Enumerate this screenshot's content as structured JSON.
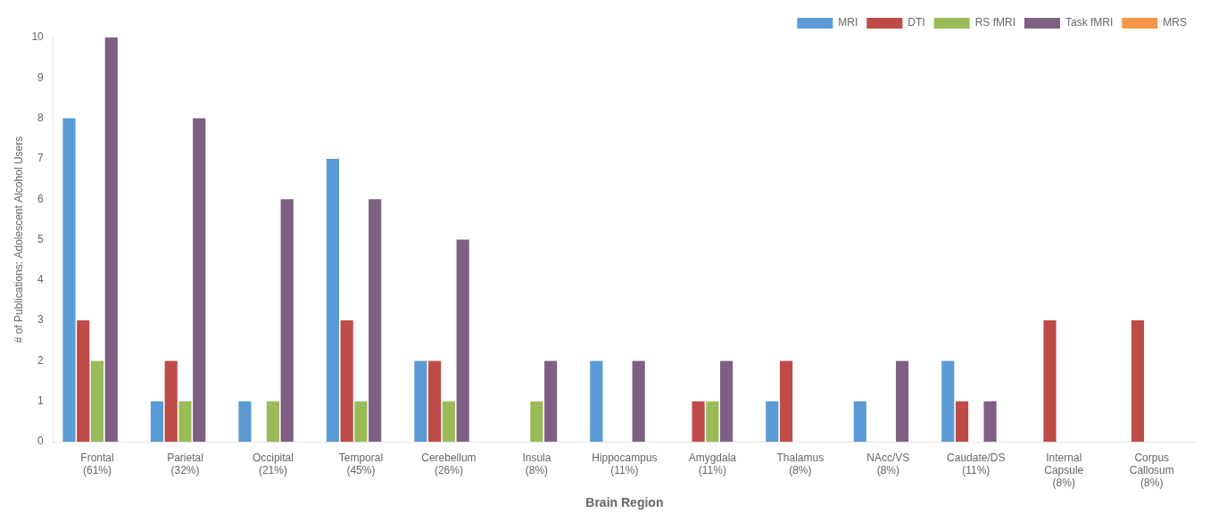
{
  "chart_data": {
    "type": "bar",
    "categories": [
      "Frontal\n(61%)",
      "Parietal\n(32%)",
      "Occipital\n(21%)",
      "Temporal\n(45%)",
      "Cerebellum\n(26%)",
      "Insula\n(8%)",
      "Hippocampus\n(11%)",
      "Amygdala\n(11%)",
      "Thalamus\n(8%)",
      "NAcc/VS\n(8%)",
      "Caudate/DS\n(11%)",
      "Internal\nCapsule\n(8%)",
      "Corpus\nCallosum\n(8%)"
    ],
    "series": [
      {
        "name": "MRI",
        "color": "#5B9BD5",
        "values": [
          8,
          1,
          1,
          7,
          2,
          0,
          2,
          0,
          1,
          1,
          2,
          0,
          0
        ]
      },
      {
        "name": "DTI",
        "color": "#BE4B48",
        "values": [
          3,
          2,
          0,
          3,
          2,
          0,
          0,
          1,
          2,
          0,
          1,
          3,
          3
        ]
      },
      {
        "name": "RS fMRI",
        "color": "#9BBB59",
        "values": [
          2,
          1,
          1,
          1,
          1,
          1,
          0,
          1,
          0,
          0,
          0,
          0,
          0
        ]
      },
      {
        "name": "Task fMRI",
        "color": "#7F6084",
        "values": [
          10,
          8,
          6,
          6,
          5,
          2,
          2,
          2,
          0,
          2,
          1,
          0,
          0
        ]
      },
      {
        "name": "MRS",
        "color": "#F79646",
        "values": [
          0,
          0,
          0,
          0,
          0,
          0,
          0,
          0,
          0,
          0,
          0,
          0,
          0
        ]
      }
    ],
    "xlabel": "Brain Region",
    "ylabel": "# of Publications: Adolescent Alcohol Users",
    "ylim": [
      0,
      10
    ],
    "yticks": [
      0,
      1,
      2,
      3,
      4,
      5,
      6,
      7,
      8,
      9,
      10
    ],
    "grid": false,
    "legend": "upper right"
  }
}
